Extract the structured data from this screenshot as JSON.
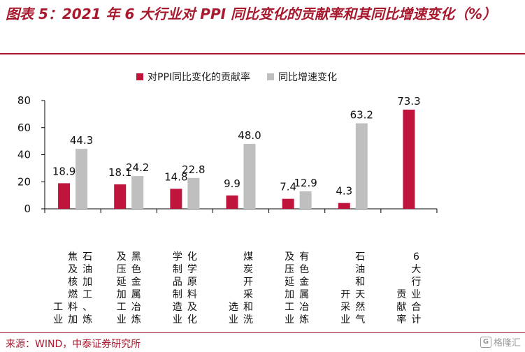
{
  "header": {
    "title": "图表 5：2021 年 6 大行业对 PPI 同比变化的贡献率和其同比增速变化（%）"
  },
  "footer": {
    "source": "来源：WIND，中泰证券研究所",
    "watermark": "格隆汇"
  },
  "colors": {
    "series1": "#c0143c",
    "series2": "#bfbfbf",
    "accent": "#a8192e"
  },
  "chart_data": {
    "type": "bar",
    "categories": [
      "石油加工、炼焦及核燃料加工业",
      "黑色金属冶炼及压延加工业",
      "化学原料及化学制品制造业",
      "煤炭开采和洗选业",
      "有色金属冶炼及压延加工业",
      "石油和天然气开采业",
      "6大行业合计贡献率"
    ],
    "series": [
      {
        "name": "对PPI同比变化的贡献率",
        "values": [
          18.9,
          18.1,
          14.8,
          9.9,
          7.4,
          4.3,
          73.3
        ]
      },
      {
        "name": "同比增速变化",
        "values": [
          44.3,
          24.2,
          22.8,
          48.0,
          12.9,
          63.2,
          null
        ]
      }
    ],
    "ylim": [
      0,
      80
    ],
    "yticks": [
      0,
      20,
      40,
      60,
      80
    ],
    "legend_position": "top-center",
    "grid": false
  }
}
